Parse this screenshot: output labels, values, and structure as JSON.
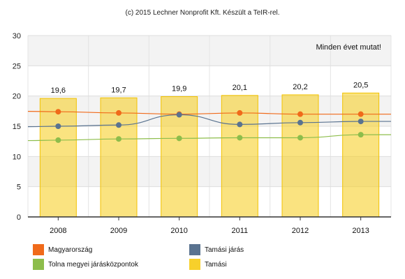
{
  "credit": "(c) 2015 Lechner Nonprofit Kft. Készült a TeIR-rel.",
  "show_all_label": "Minden évet mutat!",
  "chart_data": {
    "type": "bar",
    "categories": [
      "2008",
      "2009",
      "2010",
      "2011",
      "2012",
      "2013"
    ],
    "ylim": [
      0,
      30
    ],
    "yticks": [
      0,
      5,
      10,
      15,
      20,
      25,
      30
    ],
    "grid": true,
    "legend_placement": "bottom",
    "bar_series": {
      "name": "Tamási",
      "color": "#f7d02b",
      "values": [
        19.6,
        19.7,
        19.9,
        20.1,
        20.2,
        20.5
      ],
      "labels": [
        "19,6",
        "19,7",
        "19,9",
        "20,1",
        "20,2",
        "20,5"
      ]
    },
    "line_series": [
      {
        "name": "Magyarország",
        "color": "#f06a1a",
        "values": [
          17.4,
          17.2,
          17.0,
          17.2,
          17.0,
          17.0
        ]
      },
      {
        "name": "Tamási járás",
        "color": "#5a7390",
        "values": [
          15.0,
          15.2,
          16.9,
          15.3,
          15.6,
          15.8
        ]
      },
      {
        "name": "Tolna megyei járásközpontok",
        "color": "#8dbd4b",
        "values": [
          12.7,
          12.9,
          13.0,
          13.1,
          13.1,
          13.6
        ]
      }
    ]
  },
  "legend": [
    {
      "label": "Magyarország",
      "color": "#f06a1a"
    },
    {
      "label": "Tamási járás",
      "color": "#5a7390"
    },
    {
      "label": "Tolna megyei járásközpontok",
      "color": "#8dbd4b"
    },
    {
      "label": "Tamási",
      "color": "#f7d02b"
    }
  ]
}
